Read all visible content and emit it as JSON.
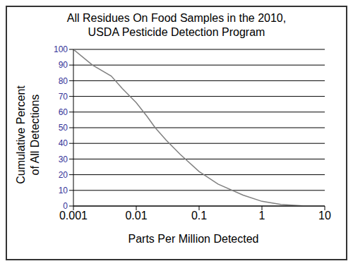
{
  "chart_data": {
    "type": "line",
    "title": "All Residues On Food Samples in the 2010,\nUSDA Pesticide Detection Program",
    "x_label": "Parts Per Million Detected",
    "y_label": "Cumulative Percent\nof All Detections",
    "x": [
      0.001,
      0.002,
      0.004,
      0.006,
      0.01,
      0.015,
      0.02,
      0.03,
      0.05,
      0.1,
      0.2,
      0.5,
      1,
      2,
      5
    ],
    "values": [
      100,
      90,
      83,
      75,
      66,
      57,
      50,
      42,
      33,
      22,
      14,
      7,
      3,
      1,
      0
    ],
    "color": "#808080",
    "log": "x",
    "xlim": [
      0.001,
      10
    ],
    "xticks": [
      0.001,
      0.01,
      0.1,
      1,
      10
    ],
    "ylim": [
      0,
      100
    ],
    "yticks": [
      0,
      10,
      20,
      30,
      40,
      50,
      60,
      70,
      80,
      90,
      100
    ],
    "grid": true
  }
}
